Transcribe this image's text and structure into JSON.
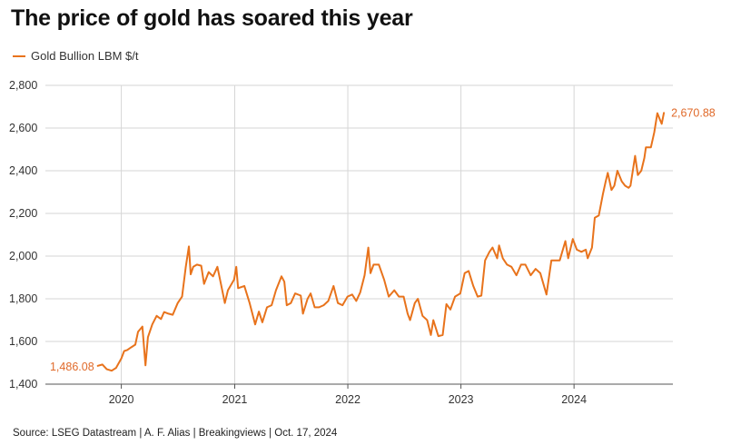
{
  "title": "The price of gold has soared this year",
  "legend": {
    "label": "Gold Bullion LBM $/t",
    "color": "#e8731c"
  },
  "source": "Source: LSEG Datastream | A. F. Alias | Breakingviews | Oct. 17, 2024",
  "chart_data": {
    "type": "line",
    "title": "The price of gold has soared this year",
    "xlabel": "",
    "ylabel": "",
    "xlim": [
      "2019-05-01",
      "2024-11-15"
    ],
    "ylim": [
      1400,
      2800
    ],
    "yticks": [
      1400,
      1600,
      1800,
      2000,
      2200,
      2400,
      2600,
      2800
    ],
    "ytick_labels": [
      "1,400",
      "1,600",
      "1,800",
      "2,000",
      "2,200",
      "2,400",
      "2,600",
      "2,800"
    ],
    "xticks": [
      "2020-01-01",
      "2021-01-01",
      "2022-01-01",
      "2023-01-01",
      "2024-01-01"
    ],
    "xtick_labels": [
      "2020",
      "2021",
      "2022",
      "2023",
      "2024"
    ],
    "grid": true,
    "legend_position": "top-left",
    "annotations": {
      "start": "1,486.08",
      "end": "2,670.88"
    },
    "series": [
      {
        "name": "Gold Bullion LBM $/t",
        "color": "#e8731c",
        "points": [
          [
            "2019-10-17",
            1486
          ],
          [
            "2019-11-01",
            1492
          ],
          [
            "2019-11-15",
            1470
          ],
          [
            "2019-12-01",
            1463
          ],
          [
            "2019-12-15",
            1476
          ],
          [
            "2020-01-01",
            1520
          ],
          [
            "2020-01-10",
            1555
          ],
          [
            "2020-01-20",
            1560
          ],
          [
            "2020-02-01",
            1572
          ],
          [
            "2020-02-15",
            1585
          ],
          [
            "2020-02-24",
            1645
          ],
          [
            "2020-03-09",
            1670
          ],
          [
            "2020-03-19",
            1488
          ],
          [
            "2020-03-27",
            1620
          ],
          [
            "2020-04-10",
            1680
          ],
          [
            "2020-04-24",
            1720
          ],
          [
            "2020-05-08",
            1705
          ],
          [
            "2020-05-18",
            1738
          ],
          [
            "2020-06-01",
            1730
          ],
          [
            "2020-06-15",
            1725
          ],
          [
            "2020-07-01",
            1780
          ],
          [
            "2020-07-15",
            1810
          ],
          [
            "2020-07-27",
            1950
          ],
          [
            "2020-08-06",
            2045
          ],
          [
            "2020-08-12",
            1915
          ],
          [
            "2020-08-20",
            1950
          ],
          [
            "2020-09-01",
            1960
          ],
          [
            "2020-09-15",
            1955
          ],
          [
            "2020-09-24",
            1870
          ],
          [
            "2020-10-09",
            1925
          ],
          [
            "2020-10-23",
            1905
          ],
          [
            "2020-11-06",
            1950
          ],
          [
            "2020-11-16",
            1880
          ],
          [
            "2020-11-30",
            1780
          ],
          [
            "2020-12-10",
            1840
          ],
          [
            "2020-12-30",
            1890
          ],
          [
            "2021-01-06",
            1950
          ],
          [
            "2021-01-12",
            1850
          ],
          [
            "2021-02-01",
            1860
          ],
          [
            "2021-02-18",
            1780
          ],
          [
            "2021-03-08",
            1680
          ],
          [
            "2021-03-20",
            1740
          ],
          [
            "2021-03-31",
            1690
          ],
          [
            "2021-04-15",
            1760
          ],
          [
            "2021-04-30",
            1770
          ],
          [
            "2021-05-14",
            1840
          ],
          [
            "2021-06-01",
            1905
          ],
          [
            "2021-06-10",
            1880
          ],
          [
            "2021-06-18",
            1770
          ],
          [
            "2021-07-01",
            1780
          ],
          [
            "2021-07-15",
            1825
          ],
          [
            "2021-08-02",
            1815
          ],
          [
            "2021-08-09",
            1730
          ],
          [
            "2021-08-24",
            1800
          ],
          [
            "2021-09-03",
            1825
          ],
          [
            "2021-09-16",
            1760
          ],
          [
            "2021-09-30",
            1760
          ],
          [
            "2021-10-15",
            1770
          ],
          [
            "2021-10-30",
            1790
          ],
          [
            "2021-11-16",
            1860
          ],
          [
            "2021-11-30",
            1780
          ],
          [
            "2021-12-15",
            1770
          ],
          [
            "2021-12-31",
            1810
          ],
          [
            "2022-01-15",
            1820
          ],
          [
            "2022-01-28",
            1790
          ],
          [
            "2022-02-10",
            1830
          ],
          [
            "2022-02-24",
            1910
          ],
          [
            "2022-03-08",
            2040
          ],
          [
            "2022-03-15",
            1920
          ],
          [
            "2022-03-25",
            1960
          ],
          [
            "2022-04-11",
            1960
          ],
          [
            "2022-04-28",
            1890
          ],
          [
            "2022-05-13",
            1810
          ],
          [
            "2022-05-31",
            1840
          ],
          [
            "2022-06-15",
            1810
          ],
          [
            "2022-06-30",
            1810
          ],
          [
            "2022-07-13",
            1730
          ],
          [
            "2022-07-21",
            1700
          ],
          [
            "2022-08-05",
            1780
          ],
          [
            "2022-08-15",
            1800
          ],
          [
            "2022-08-30",
            1720
          ],
          [
            "2022-09-14",
            1700
          ],
          [
            "2022-09-26",
            1630
          ],
          [
            "2022-10-04",
            1700
          ],
          [
            "2022-10-20",
            1625
          ],
          [
            "2022-11-03",
            1630
          ],
          [
            "2022-11-15",
            1775
          ],
          [
            "2022-11-28",
            1750
          ],
          [
            "2022-12-13",
            1810
          ],
          [
            "2022-12-30",
            1825
          ],
          [
            "2023-01-13",
            1920
          ],
          [
            "2023-01-26",
            1930
          ],
          [
            "2023-02-10",
            1860
          ],
          [
            "2023-02-24",
            1810
          ],
          [
            "2023-03-08",
            1815
          ],
          [
            "2023-03-20",
            1980
          ],
          [
            "2023-04-03",
            2020
          ],
          [
            "2023-04-13",
            2040
          ],
          [
            "2023-04-28",
            1990
          ],
          [
            "2023-05-04",
            2050
          ],
          [
            "2023-05-16",
            1990
          ],
          [
            "2023-05-30",
            1960
          ],
          [
            "2023-06-13",
            1950
          ],
          [
            "2023-06-29",
            1910
          ],
          [
            "2023-07-14",
            1960
          ],
          [
            "2023-07-28",
            1960
          ],
          [
            "2023-08-14",
            1910
          ],
          [
            "2023-08-30",
            1940
          ],
          [
            "2023-09-14",
            1920
          ],
          [
            "2023-10-04",
            1820
          ],
          [
            "2023-10-20",
            1980
          ],
          [
            "2023-10-31",
            1980
          ],
          [
            "2023-11-16",
            1980
          ],
          [
            "2023-12-04",
            2070
          ],
          [
            "2023-12-13",
            1990
          ],
          [
            "2023-12-28",
            2080
          ],
          [
            "2024-01-10",
            2030
          ],
          [
            "2024-01-25",
            2020
          ],
          [
            "2024-02-08",
            2030
          ],
          [
            "2024-02-14",
            1990
          ],
          [
            "2024-02-28",
            2040
          ],
          [
            "2024-03-08",
            2180
          ],
          [
            "2024-03-21",
            2190
          ],
          [
            "2024-04-03",
            2290
          ],
          [
            "2024-04-12",
            2350
          ],
          [
            "2024-04-19",
            2390
          ],
          [
            "2024-05-01",
            2310
          ],
          [
            "2024-05-10",
            2330
          ],
          [
            "2024-05-20",
            2400
          ],
          [
            "2024-06-03",
            2350
          ],
          [
            "2024-06-14",
            2330
          ],
          [
            "2024-06-25",
            2320
          ],
          [
            "2024-07-01",
            2330
          ],
          [
            "2024-07-16",
            2470
          ],
          [
            "2024-07-25",
            2380
          ],
          [
            "2024-08-05",
            2400
          ],
          [
            "2024-08-15",
            2460
          ],
          [
            "2024-08-20",
            2510
          ],
          [
            "2024-09-05",
            2510
          ],
          [
            "2024-09-16",
            2580
          ],
          [
            "2024-09-26",
            2670
          ],
          [
            "2024-10-04",
            2640
          ],
          [
            "2024-10-10",
            2620
          ],
          [
            "2024-10-17",
            2670.88
          ]
        ]
      }
    ]
  }
}
